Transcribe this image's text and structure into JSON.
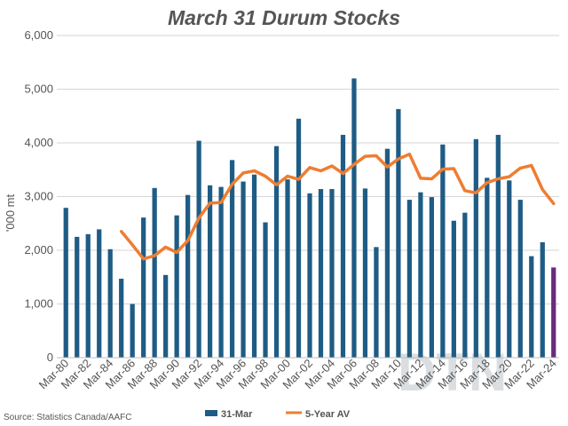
{
  "chart_data": {
    "type": "bar",
    "title": "March 31 Durum Stocks",
    "ylabel": "'000 mt",
    "ylim": [
      0,
      6000
    ],
    "yticks": [
      "0",
      "1,000",
      "2,000",
      "3,000",
      "4,000",
      "5,000",
      "6,000"
    ],
    "ytick_values": [
      0,
      1000,
      2000,
      3000,
      4000,
      5000,
      6000
    ],
    "x_tick_labels": [
      "Mar-80",
      "Mar-82",
      "Mar-84",
      "Mar-86",
      "Mar-88",
      "Mar-90",
      "Mar-92",
      "Mar-94",
      "Mar-96",
      "Mar-98",
      "Mar-00",
      "Mar-02",
      "Mar-04",
      "Mar-06",
      "Mar-08",
      "Mar-10",
      "Mar-12",
      "Mar-14",
      "Mar-16",
      "Mar-18",
      "Mar-20",
      "Mar-22",
      "Mar-24"
    ],
    "categories": [
      "Mar-80",
      "Mar-81",
      "Mar-82",
      "Mar-83",
      "Mar-84",
      "Mar-85",
      "Mar-86",
      "Mar-87",
      "Mar-88",
      "Mar-89",
      "Mar-90",
      "Mar-91",
      "Mar-92",
      "Mar-93",
      "Mar-94",
      "Mar-95",
      "Mar-96",
      "Mar-97",
      "Mar-98",
      "Mar-99",
      "Mar-00",
      "Mar-01",
      "Mar-02",
      "Mar-03",
      "Mar-04",
      "Mar-05",
      "Mar-06",
      "Mar-07",
      "Mar-08",
      "Mar-09",
      "Mar-10",
      "Mar-11",
      "Mar-12",
      "Mar-13",
      "Mar-14",
      "Mar-15",
      "Mar-16",
      "Mar-17",
      "Mar-18",
      "Mar-19",
      "Mar-20",
      "Mar-21",
      "Mar-22",
      "Mar-23",
      "Mar-24"
    ],
    "series": [
      {
        "name": "31-Mar",
        "kind": "bar",
        "color": "#1f5c85",
        "highlight_last_color": "#6b2a7a",
        "values": [
          2790,
          2250,
          2300,
          2390,
          2020,
          1470,
          1000,
          2610,
          3160,
          1540,
          2650,
          3030,
          4040,
          3210,
          3180,
          3680,
          3280,
          3410,
          2520,
          3940,
          3320,
          4450,
          3060,
          3140,
          3140,
          4150,
          5200,
          3150,
          2060,
          3890,
          4630,
          2940,
          3080,
          2990,
          3970,
          2550,
          2700,
          4070,
          3350,
          4150,
          3300,
          2940,
          1890,
          2150,
          1680
        ]
      },
      {
        "name": "5-Year AV",
        "kind": "line",
        "color": "#ee7d31",
        "values": [
          null,
          null,
          null,
          null,
          null,
          2350,
          2100,
          1840,
          1900,
          2060,
          1960,
          2180,
          2600,
          2880,
          2890,
          3230,
          3440,
          3480,
          3380,
          3220,
          3380,
          3320,
          3540,
          3480,
          3570,
          3430,
          3600,
          3750,
          3760,
          3550,
          3700,
          3790,
          3340,
          3330,
          3510,
          3520,
          3110,
          3070,
          3260,
          3330,
          3370,
          3530,
          3580,
          3130,
          2870
        ]
      }
    ],
    "legend": "bottom",
    "grid": "horizontal",
    "source": "Source: Statistics Canada/AAFC",
    "watermark": "DTN"
  }
}
